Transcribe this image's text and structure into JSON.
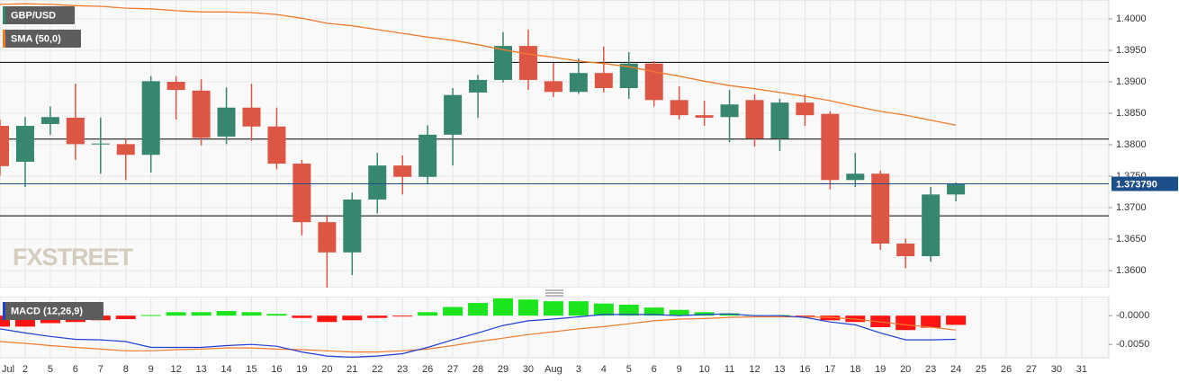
{
  "chart_data": [
    {
      "type": "candlestick",
      "series": [
        {
          "name": "GBP/USD",
          "color": "#37866f",
          "up_color": "#37866f",
          "down_color": "#dd5543",
          "open": [
            1.383,
            1.3773,
            1.3833,
            1.3843,
            1.3801,
            1.3801,
            1.3784,
            1.39,
            1.3886,
            1.3813,
            1.3859,
            1.3829,
            1.377,
            1.3677,
            1.3629,
            1.3713,
            1.3767,
            1.3749,
            1.3816,
            1.3883,
            1.3903,
            1.3957,
            1.3901,
            1.3884,
            1.3914,
            1.389,
            1.3929,
            1.3871,
            1.3847,
            1.3844,
            1.3871,
            1.381,
            1.3867,
            1.3849,
            1.3744,
            1.3754,
            1.3643,
            1.3623,
            1.3721,
            null,
            null,
            null,
            null,
            null
          ],
          "high": [
            1.384,
            1.3844,
            1.3861,
            1.3897,
            1.3843,
            1.3809,
            1.3909,
            1.3909,
            1.3904,
            1.3891,
            1.3897,
            1.3859,
            1.3776,
            1.3687,
            1.3724,
            1.3787,
            1.3783,
            1.3831,
            1.389,
            1.3911,
            1.3979,
            1.3983,
            1.393,
            1.3937,
            1.3956,
            1.3947,
            1.3933,
            1.3893,
            1.387,
            1.3887,
            1.388,
            1.3873,
            1.388,
            1.3853,
            1.3787,
            1.3759,
            1.3651,
            1.3733,
            1.374,
            null,
            null,
            null,
            null,
            null
          ],
          "low": [
            1.3751,
            1.3733,
            1.3816,
            1.3776,
            1.3754,
            1.3744,
            1.3756,
            1.384,
            1.3799,
            1.3801,
            1.3806,
            1.3761,
            1.3656,
            1.3573,
            1.3593,
            1.3691,
            1.3721,
            1.3737,
            1.3767,
            1.3843,
            1.3899,
            1.3887,
            1.3876,
            1.3881,
            1.3883,
            1.3873,
            1.3861,
            1.384,
            1.383,
            1.3804,
            1.3797,
            1.379,
            1.383,
            1.3729,
            1.3733,
            1.3633,
            1.3604,
            1.3614,
            1.371,
            null,
            null,
            null,
            null,
            null
          ],
          "close": [
            1.3766,
            1.383,
            1.3844,
            1.3801,
            1.3802,
            1.3784,
            1.3901,
            1.3887,
            1.3811,
            1.3859,
            1.3829,
            1.377,
            1.3677,
            1.3629,
            1.3713,
            1.3767,
            1.3749,
            1.3816,
            1.3879,
            1.3903,
            1.3957,
            1.3903,
            1.3884,
            1.3914,
            1.389,
            1.3929,
            1.3871,
            1.3847,
            1.3843,
            1.3864,
            1.381,
            1.3867,
            1.3847,
            1.3744,
            1.3754,
            1.3643,
            1.3623,
            1.3721,
            1.37379,
            null,
            null,
            null,
            null,
            null
          ]
        }
      ],
      "overlays": [
        {
          "name": "SMA (50,0)",
          "color": "#f07b2c",
          "values": [
            1.4023,
            1.4024,
            1.4023,
            1.4021,
            1.402,
            1.4017,
            1.4016,
            1.4013,
            1.4011,
            1.4011,
            1.401,
            1.4007,
            1.4001,
            1.3993,
            1.3989,
            1.3983,
            1.3977,
            1.3971,
            1.3966,
            1.3959,
            1.3951,
            1.3944,
            1.3939,
            1.3933,
            1.3929,
            1.3924,
            1.3916,
            1.3909,
            1.3901,
            1.3894,
            1.3889,
            1.3883,
            1.3877,
            1.387,
            1.3861,
            1.3853,
            1.3847,
            1.3839,
            1.3831,
            null,
            null,
            null,
            null,
            null
          ]
        }
      ],
      "levels": [
        1.3931,
        1.3809,
        1.3687
      ],
      "level_color": "#000000",
      "last_price": {
        "value": 1.37379,
        "label": "1.373790"
      },
      "last_color": "#1d4e89",
      "ylim": [
        1.3573,
        1.403
      ],
      "yticks": [
        {
          "value": 1.4,
          "label": "1.4000"
        },
        {
          "value": 1.395,
          "label": "1.3950"
        },
        {
          "value": 1.39,
          "label": "1.3900"
        },
        {
          "value": 1.385,
          "label": "1.3850"
        },
        {
          "value": 1.38,
          "label": "1.3800"
        },
        {
          "value": 1.375,
          "label": "1.3750"
        },
        {
          "value": 1.37,
          "label": "1.3700"
        },
        {
          "value": 1.365,
          "label": "1.3650"
        },
        {
          "value": 1.36,
          "label": "1.3600"
        }
      ],
      "watermark": "FXSTREET",
      "grid": true
    },
    {
      "type": "macd",
      "title": "MACD (12,26,9)",
      "title_color": "#1f3fd6",
      "categories": [
        "Jul",
        "2",
        "5",
        "6",
        "7",
        "8",
        "9",
        "12",
        "13",
        "14",
        "15",
        "16",
        "19",
        "20",
        "21",
        "22",
        "23",
        "26",
        "27",
        "28",
        "29",
        "30",
        "Aug",
        "3",
        "4",
        "5",
        "6",
        "9",
        "10",
        "11",
        "12",
        "13",
        "16",
        "17",
        "18",
        "19",
        "20",
        "23",
        "24",
        "25",
        "26",
        "27",
        "30",
        "31"
      ],
      "histogram": {
        "up_color": "#1de51d",
        "down_color": "#ff1414",
        "values": [
          -0.0019,
          -0.0019,
          -0.0013,
          -0.0011,
          -0.0008,
          -0.0006,
          0.0001,
          0.0006,
          0.0006,
          0.0008,
          0.0006,
          0.0003,
          -0.0004,
          -0.0011,
          -0.0008,
          -0.0004,
          -0.0001,
          0.0006,
          0.0015,
          0.0022,
          0.003,
          0.0028,
          0.0025,
          0.0025,
          0.0021,
          0.0019,
          0.0014,
          0.001,
          0.0006,
          0.0004,
          0.0001,
          0.0001,
          -0.0001,
          -0.0008,
          -0.0011,
          -0.002,
          -0.0025,
          -0.0021,
          -0.0016,
          null,
          null,
          null,
          null,
          null
        ]
      },
      "macd_line": {
        "color": "#1f3fd6",
        "values": [
          -0.0023,
          -0.003,
          -0.0036,
          -0.0041,
          -0.0042,
          -0.0045,
          -0.0055,
          -0.0055,
          -0.0055,
          -0.0052,
          -0.005,
          -0.0053,
          -0.0063,
          -0.007,
          -0.0072,
          -0.007,
          -0.0066,
          -0.0055,
          -0.0042,
          -0.003,
          -0.0017,
          -0.0009,
          -0.0006,
          -0.0002,
          0.0002,
          0.0002,
          0.0002,
          0.0,
          0.0002,
          0.0003,
          0.0,
          0.0,
          -0.0003,
          -0.0011,
          -0.0016,
          -0.003,
          -0.0042,
          -0.0042,
          -0.0041,
          null,
          null,
          null,
          null,
          null
        ]
      },
      "signal_line": {
        "color": "#f07b2c",
        "values": [
          -0.0045,
          -0.0048,
          -0.0052,
          -0.0055,
          -0.0058,
          -0.0061,
          -0.0061,
          -0.0059,
          -0.0058,
          -0.0056,
          -0.0056,
          -0.0058,
          -0.0059,
          -0.0061,
          -0.0063,
          -0.0063,
          -0.0061,
          -0.0058,
          -0.0052,
          -0.0045,
          -0.0039,
          -0.0033,
          -0.0028,
          -0.0023,
          -0.0019,
          -0.0014,
          -0.0009,
          -0.0006,
          -0.0005,
          -0.0003,
          -0.0002,
          -0.0002,
          -0.0002,
          -0.0003,
          -0.0006,
          -0.0011,
          -0.0016,
          -0.002,
          -0.0025,
          null,
          null,
          null,
          null,
          null
        ]
      },
      "ylim": [
        -0.0073,
        0.0033
      ],
      "yticks": [
        {
          "value": 0,
          "label": "-0.0000"
        },
        {
          "value": -0.005,
          "label": "-0.0050"
        }
      ]
    }
  ]
}
